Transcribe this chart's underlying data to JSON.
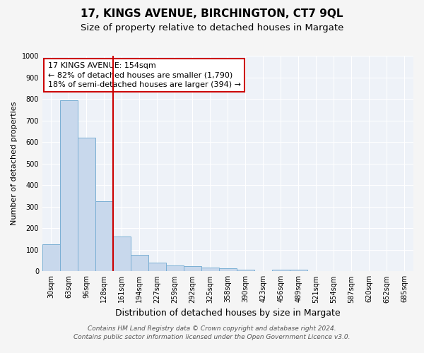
{
  "title": "17, KINGS AVENUE, BIRCHINGTON, CT7 9QL",
  "subtitle": "Size of property relative to detached houses in Margate",
  "xlabel": "Distribution of detached houses by size in Margate",
  "ylabel": "Number of detached properties",
  "categories": [
    "30sqm",
    "63sqm",
    "96sqm",
    "128sqm",
    "161sqm",
    "194sqm",
    "227sqm",
    "259sqm",
    "292sqm",
    "325sqm",
    "358sqm",
    "390sqm",
    "423sqm",
    "456sqm",
    "489sqm",
    "521sqm",
    "554sqm",
    "587sqm",
    "620sqm",
    "652sqm",
    "685sqm"
  ],
  "values": [
    125,
    795,
    620,
    325,
    160,
    77,
    40,
    28,
    25,
    17,
    13,
    7,
    0,
    8,
    8,
    0,
    0,
    0,
    0,
    0,
    0
  ],
  "bar_color": "#c8d8ec",
  "bar_edge_color": "#7aafd4",
  "vline_x": 3.5,
  "vline_color": "#cc0000",
  "annot_line1": "17 KINGS AVENUE: 154sqm",
  "annot_line2": "← 82% of detached houses are smaller (1,790)",
  "annot_line3": "18% of semi-detached houses are larger (394) →",
  "annotation_box_color": "#ffffff",
  "annotation_box_edge": "#cc0000",
  "ylim": [
    0,
    1000
  ],
  "yticks": [
    0,
    100,
    200,
    300,
    400,
    500,
    600,
    700,
    800,
    900,
    1000
  ],
  "footer_line1": "Contains HM Land Registry data © Crown copyright and database right 2024.",
  "footer_line2": "Contains public sector information licensed under the Open Government Licence v3.0.",
  "bg_color": "#eef2f8",
  "grid_color": "#ffffff",
  "title_fontsize": 11,
  "subtitle_fontsize": 9.5,
  "xlabel_fontsize": 9,
  "ylabel_fontsize": 8,
  "tick_fontsize": 7,
  "annot_fontsize": 8,
  "footer_fontsize": 6.5
}
